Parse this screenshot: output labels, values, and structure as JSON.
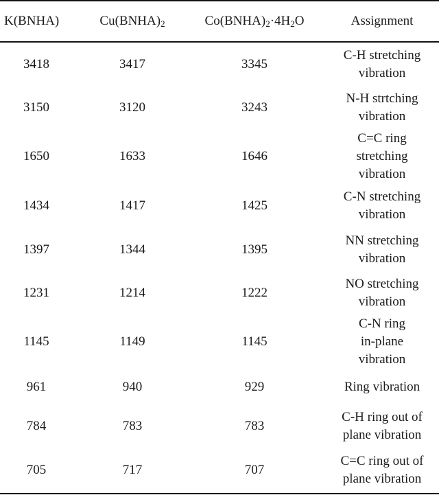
{
  "headers": {
    "col1": "K(BNHA)",
    "col2_main": "Cu(BNHA)",
    "col2_sub": "2",
    "col3_main": "Co(BNHA)",
    "col3_sub": "2",
    "col3_mid": "·4H",
    "col3_sub2": "2",
    "col3_tail": "O",
    "col4": "Assignment"
  },
  "rows": [
    {
      "k": "3418",
      "cu": "3417",
      "co": "3345",
      "assign": [
        "C-H stretching",
        "vibration"
      ]
    },
    {
      "k": "3150",
      "cu": "3120",
      "co": "3243",
      "assign": [
        "N-H strtching",
        "vibration"
      ]
    },
    {
      "k": "1650",
      "cu": "1633",
      "co": "1646",
      "assign": [
        "C=C ring",
        "stretching",
        "vibration"
      ]
    },
    {
      "k": "1434",
      "cu": "1417",
      "co": "1425",
      "assign": [
        "C-N stretching",
        "vibration"
      ]
    },
    {
      "k": "1397",
      "cu": "1344",
      "co": "1395",
      "assign": [
        "NN stretching",
        "vibration"
      ]
    },
    {
      "k": "1231",
      "cu": "1214",
      "co": "1222",
      "assign": [
        "NO stretching",
        "vibration"
      ]
    },
    {
      "k": "1145",
      "cu": "1149",
      "co": "1145",
      "assign": [
        "C-N ring",
        "in-plane",
        "vibration"
      ]
    },
    {
      "k": "961",
      "cu": "940",
      "co": "929",
      "assign": [
        "Ring vibration"
      ]
    },
    {
      "k": "784",
      "cu": "783",
      "co": "783",
      "assign": [
        "C-H ring out of",
        "plane vibration"
      ]
    },
    {
      "k": "705",
      "cu": "717",
      "co": "707",
      "assign": [
        "C=C ring out of",
        "plane vibration"
      ]
    }
  ]
}
